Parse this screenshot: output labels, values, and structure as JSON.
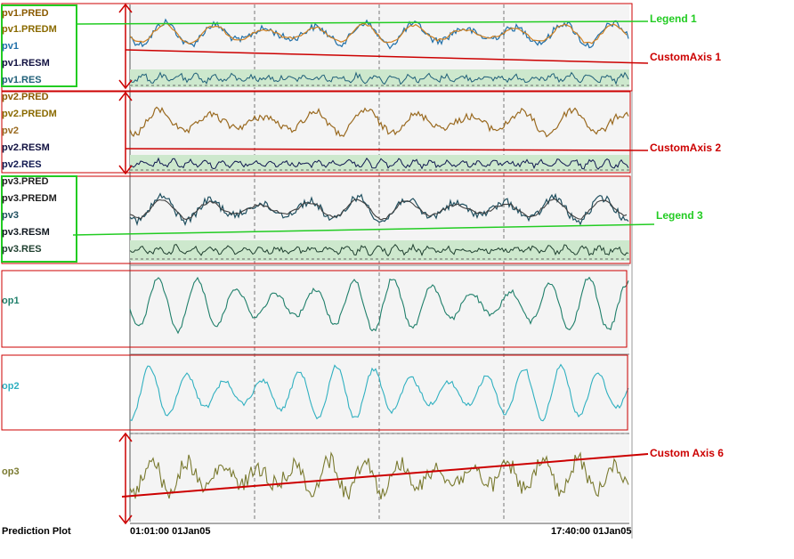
{
  "chart_data": {
    "type": "line",
    "title": "Prediction Plot",
    "x_start_label": "01:01:00 01Jan05",
    "x_end_label": "17:40:00 01Jan05",
    "grid": true,
    "panels": [
      {
        "id": "pv1",
        "series": [
          {
            "name": "pv1.PRED",
            "color": "#8a5a00"
          },
          {
            "name": "pv1.PREDM",
            "color": "#8a6a00"
          },
          {
            "name": "pv1",
            "color": "#1f6fa8"
          },
          {
            "name": "pv1.RESM",
            "color": "#101040"
          },
          {
            "name": "pv1.RES",
            "color": "#1f5f78"
          }
        ]
      },
      {
        "id": "pv2",
        "series": [
          {
            "name": "pv2.PRED",
            "color": "#8a5a00"
          },
          {
            "name": "pv2.PREDM",
            "color": "#8a6a00"
          },
          {
            "name": "pv2",
            "color": "#9a6a20"
          },
          {
            "name": "pv2.RESM",
            "color": "#101040"
          },
          {
            "name": "pv2.RES",
            "color": "#101850"
          }
        ]
      },
      {
        "id": "pv3",
        "series": [
          {
            "name": "pv3.PRED",
            "color": "#202020"
          },
          {
            "name": "pv3.PREDM",
            "color": "#202020"
          },
          {
            "name": "pv3",
            "color": "#1f4f5f"
          },
          {
            "name": "pv3.RESM",
            "color": "#101820"
          },
          {
            "name": "pv3.RES",
            "color": "#1f3f2f"
          }
        ]
      },
      {
        "id": "op1",
        "series": [
          {
            "name": "op1",
            "color": "#1f7f6a"
          }
        ]
      },
      {
        "id": "op2",
        "series": [
          {
            "name": "op2",
            "color": "#30b0c0"
          }
        ]
      },
      {
        "id": "op3",
        "series": [
          {
            "name": "op3",
            "color": "#7a7a30"
          }
        ]
      }
    ]
  },
  "annotations": {
    "legend1": "Legend 1",
    "custom_axis1": "CustomAxis 1",
    "custom_axis2": "CustomAxis 2",
    "legend3": "Legend 3",
    "custom_axis6": "Custom Axis 6"
  },
  "colors": {
    "panel_bg": "#f4f4f4",
    "band": "#cde8cd",
    "annotation_red": "#cc0000",
    "annotation_green": "#22cc22"
  }
}
